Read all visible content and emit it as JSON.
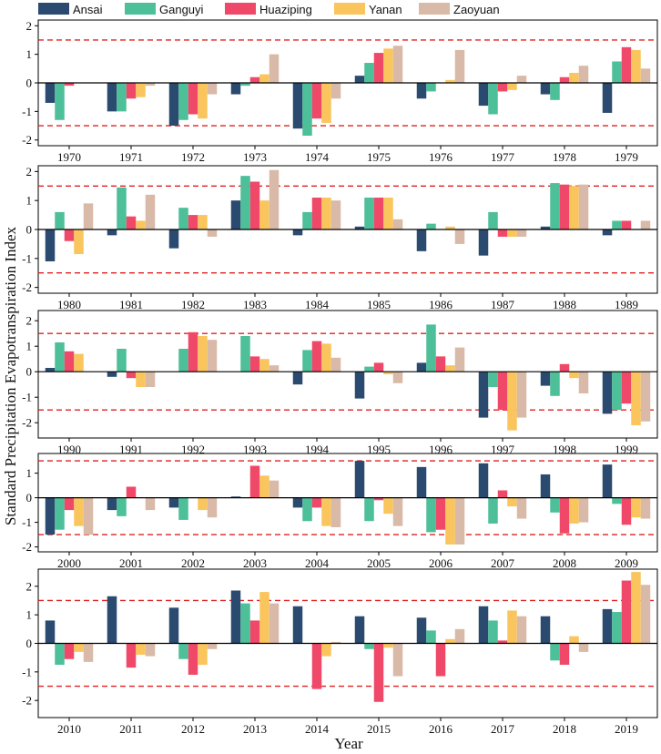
{
  "colors": {
    "Ansai": "#2b4a6f",
    "Ganguyi": "#4dbf99",
    "Huaziping": "#ef4868",
    "Yanan": "#f9c55c",
    "Zaoyuan": "#d9b9a7",
    "threshold": "#e02020"
  },
  "chart_data": {
    "type": "bar",
    "xlabel": "Year",
    "ylabel": "Standard Precipitation Evapotranspiration Index",
    "thresholds": [
      1.5,
      -1.5
    ],
    "series_names": [
      "Ansai",
      "Ganguyi",
      "Huaziping",
      "Yanan",
      "Zaoyuan"
    ],
    "panels": [
      {
        "ylim": [
          -2.2,
          2.2
        ],
        "yticks": [
          -2,
          -1,
          0,
          1,
          2
        ],
        "years": [
          "1970",
          "1971",
          "1972",
          "1973",
          "1974",
          "1975",
          "1976",
          "1977",
          "1978",
          "1979"
        ],
        "series": [
          {
            "name": "Ansai",
            "values": [
              -0.7,
              -1.0,
              -1.5,
              -0.4,
              -1.6,
              0.25,
              -0.55,
              -0.8,
              -0.4,
              -1.05
            ]
          },
          {
            "name": "Ganguyi",
            "values": [
              -1.3,
              -1.0,
              -1.3,
              -0.1,
              -1.85,
              0.7,
              -0.3,
              -1.1,
              -0.6,
              0.75
            ]
          },
          {
            "name": "Huaziping",
            "values": [
              -0.1,
              -0.55,
              -1.1,
              0.2,
              -1.25,
              1.05,
              0.0,
              -0.3,
              0.2,
              1.25
            ]
          },
          {
            "name": "Yanan",
            "values": [
              0.0,
              -0.5,
              -1.25,
              0.3,
              -1.4,
              1.2,
              0.1,
              -0.25,
              0.35,
              1.15
            ]
          },
          {
            "name": "Zaoyuan",
            "values": [
              0.0,
              -0.1,
              -0.4,
              1.0,
              -0.55,
              1.3,
              1.15,
              0.25,
              0.6,
              0.5
            ]
          }
        ]
      },
      {
        "ylim": [
          -2.2,
          2.2
        ],
        "yticks": [
          -2,
          -1,
          0,
          1,
          2
        ],
        "years": [
          "1980",
          "1981",
          "1982",
          "1983",
          "1984",
          "1985",
          "1986",
          "1987",
          "1988",
          "1989"
        ],
        "series": [
          {
            "name": "Ansai",
            "values": [
              -1.1,
              -0.2,
              -0.65,
              1.0,
              -0.2,
              0.1,
              -0.75,
              -0.9,
              0.1,
              -0.2
            ]
          },
          {
            "name": "Ganguyi",
            "values": [
              0.6,
              1.45,
              0.75,
              1.85,
              0.6,
              1.1,
              0.2,
              0.6,
              1.6,
              0.3
            ]
          },
          {
            "name": "Huaziping",
            "values": [
              -0.4,
              0.45,
              0.5,
              1.65,
              1.1,
              1.1,
              0.0,
              -0.25,
              1.55,
              0.3
            ]
          },
          {
            "name": "Yanan",
            "values": [
              -0.85,
              0.3,
              0.5,
              1.0,
              1.1,
              1.1,
              0.1,
              -0.25,
              1.5,
              0.0
            ]
          },
          {
            "name": "Zaoyuan",
            "values": [
              0.9,
              1.2,
              -0.25,
              2.05,
              1.0,
              0.35,
              -0.5,
              -0.25,
              1.55,
              0.3
            ]
          }
        ]
      },
      {
        "ylim": [
          -2.6,
          2.4
        ],
        "yticks": [
          -2,
          -1,
          0,
          1,
          2
        ],
        "years": [
          "1990",
          "1991",
          "1992",
          "1993",
          "1994",
          "1995",
          "1996",
          "1997",
          "1998",
          "1999"
        ],
        "series": [
          {
            "name": "Ansai",
            "values": [
              0.15,
              -0.2,
              0.0,
              0.0,
              -0.5,
              -1.05,
              0.35,
              -1.8,
              -0.55,
              -1.65
            ]
          },
          {
            "name": "Ganguyi",
            "values": [
              1.15,
              0.9,
              0.9,
              1.4,
              0.85,
              0.2,
              1.85,
              -0.6,
              -0.95,
              -1.5
            ]
          },
          {
            "name": "Huaziping",
            "values": [
              0.8,
              -0.25,
              1.55,
              0.6,
              1.2,
              0.35,
              0.6,
              -1.5,
              0.3,
              -1.25
            ]
          },
          {
            "name": "Yanan",
            "values": [
              0.7,
              -0.6,
              1.4,
              0.5,
              1.1,
              -0.1,
              0.25,
              -2.3,
              -0.25,
              -2.1
            ]
          },
          {
            "name": "Zaoyuan",
            "values": [
              0.0,
              -0.6,
              1.25,
              0.25,
              0.55,
              -0.45,
              0.95,
              -1.8,
              -0.85,
              -1.95
            ]
          }
        ]
      },
      {
        "ylim": [
          -2.2,
          1.8
        ],
        "yticks": [
          -2,
          -1,
          0,
          1
        ],
        "years": [
          "2000",
          "2001",
          "2002",
          "2003",
          "2004",
          "2005",
          "2006",
          "2007",
          "2008",
          "2009"
        ],
        "series": [
          {
            "name": "Ansai",
            "values": [
              -1.5,
              -0.5,
              -0.4,
              0.05,
              -0.4,
              1.5,
              1.25,
              1.4,
              0.95,
              1.35
            ]
          },
          {
            "name": "Ganguyi",
            "values": [
              -1.3,
              -0.75,
              -0.9,
              0.0,
              -0.95,
              -0.95,
              -1.4,
              -1.05,
              -0.6,
              -0.25
            ]
          },
          {
            "name": "Huaziping",
            "values": [
              -0.5,
              0.45,
              0.0,
              1.3,
              -0.4,
              -0.1,
              -1.3,
              0.3,
              -1.45,
              -1.1
            ]
          },
          {
            "name": "Yanan",
            "values": [
              -1.15,
              0.0,
              -0.5,
              0.9,
              -1.15,
              -0.65,
              -1.9,
              -0.35,
              -1.05,
              -0.8
            ]
          },
          {
            "name": "Zaoyuan",
            "values": [
              -1.5,
              -0.5,
              -0.8,
              0.7,
              -1.2,
              -1.15,
              -1.9,
              -0.85,
              -1.0,
              -0.85
            ]
          }
        ]
      },
      {
        "ylim": [
          -2.6,
          2.6
        ],
        "yticks": [
          -2,
          -1,
          0,
          1,
          2
        ],
        "years": [
          "2010",
          "2011",
          "2012",
          "2013",
          "2014",
          "2015",
          "2016",
          "2017",
          "2018",
          "2019"
        ],
        "series": [
          {
            "name": "Ansai",
            "values": [
              0.8,
              1.65,
              1.25,
              1.85,
              1.3,
              0.95,
              0.9,
              1.3,
              0.95,
              1.2
            ]
          },
          {
            "name": "Ganguyi",
            "values": [
              -0.75,
              0.0,
              -0.55,
              1.4,
              0.0,
              -0.2,
              0.45,
              0.8,
              -0.6,
              1.1
            ]
          },
          {
            "name": "Huaziping",
            "values": [
              -0.55,
              -0.85,
              -1.1,
              0.8,
              -1.6,
              -2.05,
              -1.15,
              0.1,
              -0.75,
              2.2
            ]
          },
          {
            "name": "Yanan",
            "values": [
              -0.3,
              -0.4,
              -0.75,
              1.8,
              -0.45,
              -0.15,
              0.15,
              1.15,
              0.25,
              2.5
            ]
          },
          {
            "name": "Zaoyuan",
            "values": [
              -0.65,
              -0.45,
              -0.2,
              1.4,
              0.05,
              -1.15,
              0.5,
              0.95,
              -0.3,
              2.05
            ]
          }
        ]
      }
    ]
  }
}
